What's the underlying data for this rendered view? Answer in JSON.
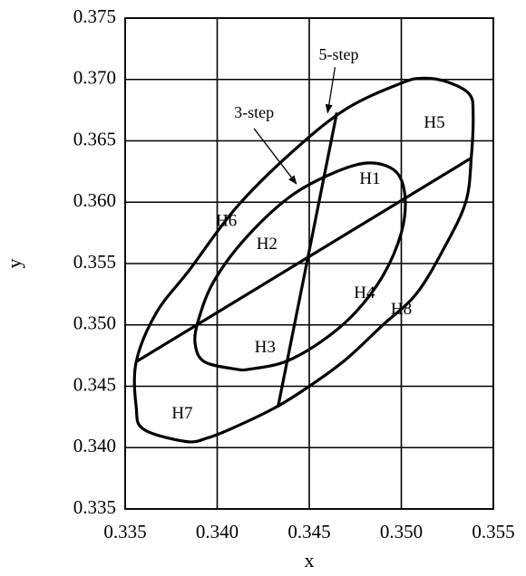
{
  "chart_data": {
    "type": "line",
    "title": "",
    "xlabel": "x",
    "ylabel": "y",
    "xlim": [
      0.335,
      0.355
    ],
    "ylim": [
      0.335,
      0.375
    ],
    "x_ticks": [
      0.335,
      0.34,
      0.345,
      0.35,
      0.355
    ],
    "x_tick_labels": [
      "0.335",
      "0.340",
      "0.345",
      "0.350",
      "0.355"
    ],
    "y_ticks": [
      0.335,
      0.34,
      0.345,
      0.35,
      0.355,
      0.36,
      0.365,
      0.37,
      0.375
    ],
    "y_tick_labels": [
      "0.335",
      "0.340",
      "0.345",
      "0.350",
      "0.355",
      "0.360",
      "0.365",
      "0.370",
      "0.375"
    ],
    "grid": true,
    "series": [
      {
        "key": "outer_contour",
        "closed": true,
        "x": [
          0.3383,
          0.336,
          0.3356,
          0.3356,
          0.3367,
          0.3385,
          0.341,
          0.344,
          0.347,
          0.35,
          0.3512,
          0.3525,
          0.3537,
          0.3539,
          0.3538,
          0.3535,
          0.3523,
          0.3508,
          0.349,
          0.347,
          0.345,
          0.3432,
          0.341,
          0.3395
        ],
        "y": [
          0.3405,
          0.3415,
          0.3433,
          0.347,
          0.351,
          0.3545,
          0.3595,
          0.364,
          0.3676,
          0.3697,
          0.3701,
          0.3698,
          0.3688,
          0.3672,
          0.3636,
          0.36,
          0.3562,
          0.3525,
          0.35,
          0.3472,
          0.345,
          0.3433,
          0.3417,
          0.3408
        ]
      },
      {
        "key": "inner_contour",
        "closed": true,
        "x": [
          0.341,
          0.3393,
          0.3388,
          0.339,
          0.3398,
          0.3415,
          0.344,
          0.3465,
          0.3483,
          0.3497,
          0.3502,
          0.35,
          0.349,
          0.3475,
          0.3457,
          0.3437,
          0.3418
        ],
        "y": [
          0.3464,
          0.347,
          0.3485,
          0.3505,
          0.3535,
          0.357,
          0.3605,
          0.3625,
          0.3632,
          0.3625,
          0.3605,
          0.3575,
          0.354,
          0.351,
          0.3487,
          0.347,
          0.3464
        ]
      },
      {
        "key": "diagonal_divider",
        "closed": false,
        "x": [
          0.3356,
          0.3538
        ],
        "y": [
          0.347,
          0.3636
        ]
      },
      {
        "key": "steep_divider",
        "closed": false,
        "x": [
          0.3433,
          0.3465
        ],
        "y": [
          0.3433,
          0.3673
        ]
      }
    ],
    "region_labels": [
      {
        "text": "H1",
        "x": 0.3483,
        "y": 0.3618
      },
      {
        "text": "H2",
        "x": 0.3427,
        "y": 0.3565
      },
      {
        "text": "H3",
        "x": 0.3426,
        "y": 0.3481
      },
      {
        "text": "H4",
        "x": 0.348,
        "y": 0.3525
      },
      {
        "text": "H5",
        "x": 0.3518,
        "y": 0.3664
      },
      {
        "text": "H6",
        "x": 0.3405,
        "y": 0.3584
      },
      {
        "text": "H7",
        "x": 0.3381,
        "y": 0.3427
      },
      {
        "text": "H8",
        "x": 0.35,
        "y": 0.3512
      }
    ],
    "annotations": [
      {
        "text": "5-step",
        "label_x": 0.3466,
        "label_y": 0.3719,
        "arrow_from_x": 0.3464,
        "arrow_from_y": 0.371,
        "arrow_to_x": 0.346,
        "arrow_to_y": 0.3673
      },
      {
        "text": "3-step",
        "label_x": 0.342,
        "label_y": 0.3672,
        "arrow_from_x": 0.342,
        "arrow_from_y": 0.366,
        "arrow_to_x": 0.3443,
        "arrow_to_y": 0.3615
      }
    ]
  }
}
